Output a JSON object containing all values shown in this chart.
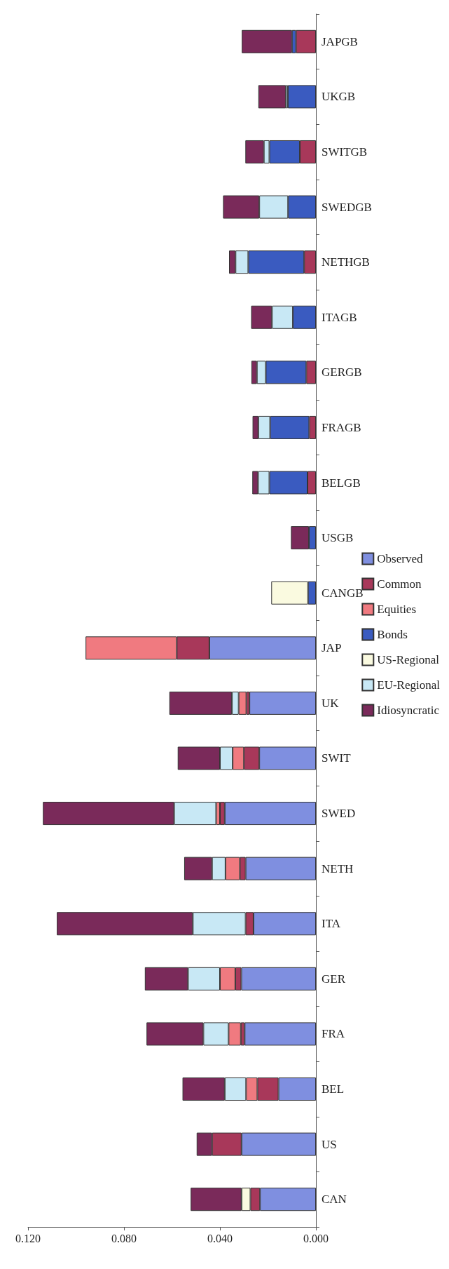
{
  "chart_data": {
    "type": "bar",
    "orientation": "horizontal",
    "stacked": true,
    "legend": "right",
    "grid": false,
    "categories": [
      "JAPGB",
      "UKGB",
      "SWITGB",
      "SWEDGB",
      "NETHGB",
      "ITAGB",
      "GERGB",
      "FRAGB",
      "BELGB",
      "USGB",
      "CANGB",
      "JAP",
      "UK",
      "SWIT",
      "SWED",
      "NETH",
      "ITA",
      "GER",
      "FRA",
      "BEL",
      "US",
      "CAN"
    ],
    "xlim": [
      0.12,
      0
    ],
    "xticks": [
      {
        "value": 0,
        "label": "0.000"
      },
      {
        "value": 0.04,
        "label": "0.040"
      },
      {
        "value": 0.08,
        "label": "0.080"
      },
      {
        "value": 0.12,
        "label": "0.120"
      }
    ],
    "series": [
      {
        "name": "Observed",
        "color": "#7f8fe0",
        "values": [
          null,
          null,
          null,
          null,
          null,
          null,
          null,
          null,
          null,
          null,
          null,
          0.0444,
          0.0277,
          0.0236,
          0.038,
          0.0293,
          0.026,
          0.0311,
          0.0297,
          0.0156,
          0.031,
          0.0233
        ]
      },
      {
        "name": "Common",
        "color": "#a8385a",
        "values": [
          0.0083,
          null,
          0.0067,
          null,
          0.0049,
          null,
          0.004,
          0.0028,
          0.0035,
          null,
          null,
          0.0136,
          0.0013,
          0.0064,
          0.002,
          0.0024,
          0.0033,
          0.0025,
          0.0016,
          0.0088,
          0.0123,
          0.004
        ]
      },
      {
        "name": "Equities",
        "color": "#f07a80",
        "values": [
          null,
          null,
          null,
          null,
          null,
          null,
          null,
          null,
          null,
          null,
          null,
          0.038,
          0.0032,
          0.0047,
          0.0016,
          0.006,
          null,
          0.0064,
          0.0051,
          0.0047,
          null,
          null
        ]
      },
      {
        "name": "Bonds",
        "color": "#3a5bc0",
        "values": [
          0.0017,
          0.0117,
          0.0127,
          0.0116,
          0.0233,
          0.0096,
          0.0169,
          0.0163,
          0.0159,
          0.0029,
          0.0033,
          null,
          null,
          null,
          null,
          null,
          null,
          null,
          null,
          null,
          null,
          null
        ]
      },
      {
        "name": "US-Regional",
        "color": "#fafae0",
        "values": [
          null,
          null,
          null,
          null,
          null,
          null,
          null,
          null,
          null,
          null,
          0.0153,
          null,
          null,
          null,
          null,
          null,
          null,
          null,
          null,
          null,
          null,
          0.0037
        ]
      },
      {
        "name": "EU-Regional",
        "color": "#c8e8f5",
        "values": [
          null,
          0.0008,
          0.0023,
          0.012,
          0.0053,
          0.0087,
          0.0037,
          0.0049,
          0.0047,
          null,
          null,
          null,
          0.0028,
          0.0053,
          0.0175,
          0.0056,
          0.022,
          0.0133,
          0.0105,
          0.0089,
          null,
          null
        ]
      },
      {
        "name": "Idiosyncratic",
        "color": "#7a2a5a",
        "values": [
          0.0209,
          0.0115,
          0.0077,
          0.0151,
          0.0027,
          0.0087,
          0.0023,
          0.0024,
          0.0024,
          0.0075,
          null,
          null,
          0.0261,
          0.0176,
          0.0547,
          0.0116,
          0.0567,
          0.018,
          0.0237,
          0.0176,
          0.0064,
          0.0212
        ]
      }
    ]
  }
}
